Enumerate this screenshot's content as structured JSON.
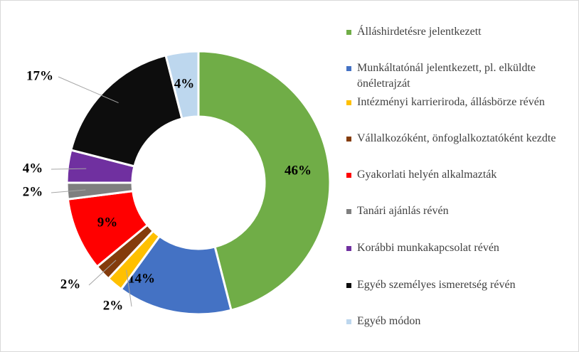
{
  "chart_data": {
    "type": "donut",
    "categories": [
      "Álláshirdetésre jelentkezett",
      "Munkáltatónál jelentkezett, pl. elküldte önéletrajzát",
      "Intézményi karrieriroda, állásbörze révén",
      "Vállalkozóként, önfoglalkoztatóként kezdte",
      "Gyakorlati helyén alkalmazták",
      "Tanári ajánlás révén",
      "Korábbi munkakapcsolat révén",
      "Egyéb személyes ismeretség révén",
      "Egyéb módon"
    ],
    "values": [
      46,
      14,
      2,
      2,
      9,
      2,
      4,
      17,
      4
    ],
    "value_labels": [
      "46%",
      "14%",
      "2%",
      "2%",
      "9%",
      "2%",
      "4%",
      "17%",
      "4%"
    ],
    "colors": [
      "#70ad47",
      "#4472c4",
      "#ffc000",
      "#843c0c",
      "#ff0000",
      "#7f7f7f",
      "#7030a0",
      "#0d0d0d",
      "#bdd7ee"
    ],
    "legend": "right"
  }
}
